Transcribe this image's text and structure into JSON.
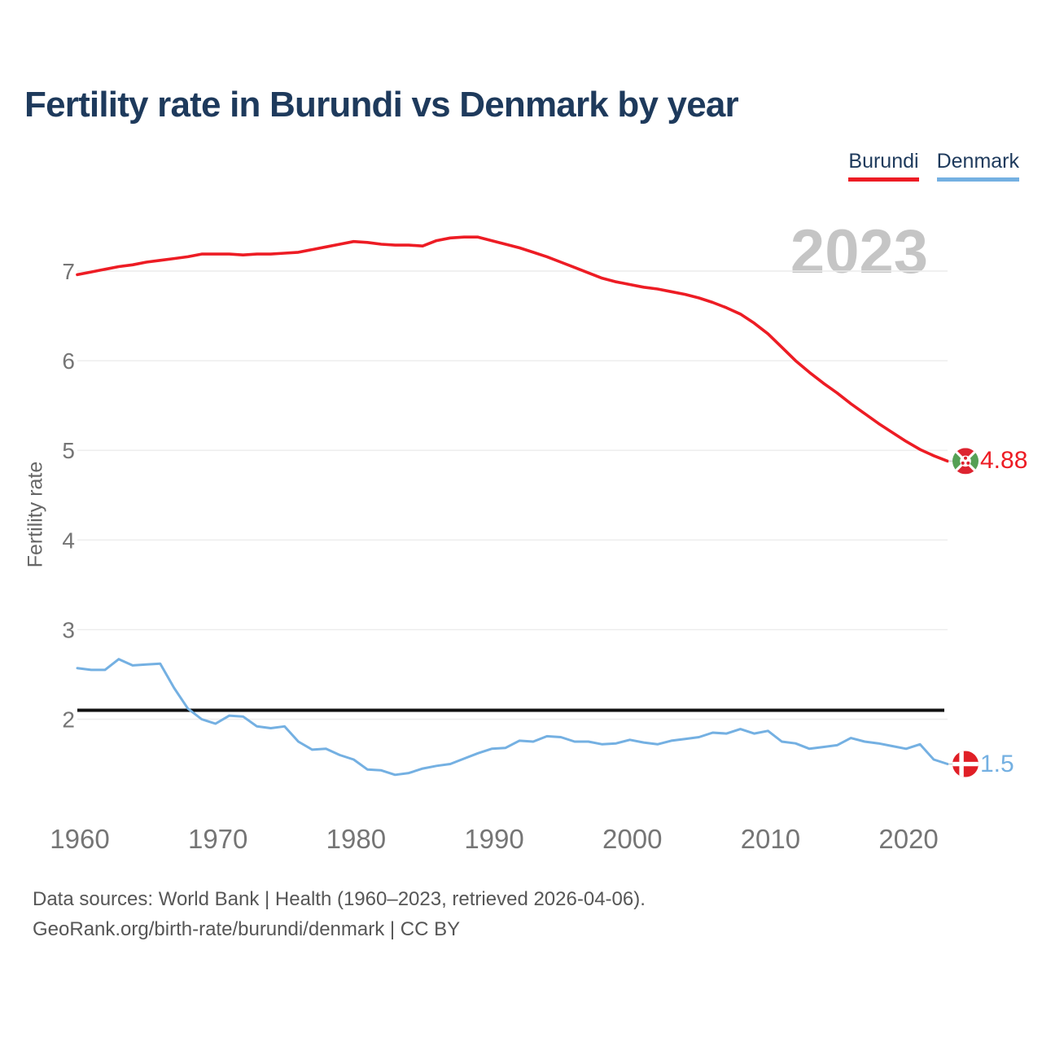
{
  "title": "Fertility rate in Burundi vs Denmark by year",
  "legend": {
    "items": [
      {
        "label": "Burundi",
        "color": "#ed1c24"
      },
      {
        "label": "Denmark",
        "color": "#74b0e2"
      }
    ]
  },
  "watermark": "2023",
  "y_axis": {
    "label": "Fertility rate"
  },
  "end_labels": [
    {
      "series": "Burundi",
      "value": "4.88",
      "flag": "burundi-flag"
    },
    {
      "series": "Denmark",
      "value": "1.5",
      "flag": "denmark-flag"
    }
  ],
  "footer": {
    "line1": "Data sources: World Bank | Health (1960–2023, retrieved 2026-04-06).",
    "line2": "GeoRank.org/birth-rate/burundi/denmark | CC BY"
  },
  "colors": {
    "burundi": "#ed1c24",
    "denmark": "#74b0e2",
    "title": "#1e3a5c",
    "axis_text": "#757575",
    "grid": "#ececec",
    "reference": "#111111",
    "watermark": "#c5c5c5",
    "connector": "#cccccc"
  },
  "chart_data": {
    "type": "line",
    "title": "Fertility rate in Burundi vs Denmark by year",
    "xlabel": "",
    "ylabel": "Fertility rate",
    "xlim": [
      1960,
      2023
    ],
    "ylim": [
      1.3,
      7.6
    ],
    "grid": "horizontal",
    "legend_position": "top-right",
    "yticks": [
      7,
      6,
      5,
      4,
      3,
      2
    ],
    "xticks": [
      1960,
      1970,
      1980,
      1990,
      2000,
      2010,
      2020
    ],
    "reference_line": 2.1,
    "x": [
      1960,
      1961,
      1962,
      1963,
      1964,
      1965,
      1966,
      1967,
      1968,
      1969,
      1970,
      1971,
      1972,
      1973,
      1974,
      1975,
      1976,
      1977,
      1978,
      1979,
      1980,
      1981,
      1982,
      1983,
      1984,
      1985,
      1986,
      1987,
      1988,
      1989,
      1990,
      1991,
      1992,
      1993,
      1994,
      1995,
      1996,
      1997,
      1998,
      1999,
      2000,
      2001,
      2002,
      2003,
      2004,
      2005,
      2006,
      2007,
      2008,
      2009,
      2010,
      2011,
      2012,
      2013,
      2014,
      2015,
      2016,
      2017,
      2018,
      2019,
      2020,
      2021,
      2022,
      2023
    ],
    "series": [
      {
        "name": "Burundi",
        "color": "#ed1c24",
        "end_value": 4.88,
        "values": [
          6.96,
          6.99,
          7.02,
          7.05,
          7.07,
          7.1,
          7.12,
          7.14,
          7.16,
          7.19,
          7.19,
          7.19,
          7.18,
          7.19,
          7.19,
          7.2,
          7.21,
          7.24,
          7.27,
          7.3,
          7.33,
          7.32,
          7.3,
          7.29,
          7.29,
          7.28,
          7.34,
          7.37,
          7.38,
          7.38,
          7.34,
          7.3,
          7.26,
          7.21,
          7.16,
          7.1,
          7.04,
          6.98,
          6.92,
          6.88,
          6.85,
          6.82,
          6.8,
          6.77,
          6.74,
          6.7,
          6.65,
          6.59,
          6.52,
          6.42,
          6.3,
          6.15,
          6.0,
          5.87,
          5.75,
          5.64,
          5.52,
          5.41,
          5.3,
          5.2,
          5.1,
          5.01,
          4.94,
          4.88
        ]
      },
      {
        "name": "Denmark",
        "color": "#74b0e2",
        "end_value": 1.5,
        "values": [
          2.57,
          2.55,
          2.55,
          2.67,
          2.6,
          2.61,
          2.62,
          2.35,
          2.12,
          2.0,
          1.95,
          2.04,
          2.03,
          1.92,
          1.9,
          1.92,
          1.75,
          1.66,
          1.67,
          1.6,
          1.55,
          1.44,
          1.43,
          1.38,
          1.4,
          1.45,
          1.48,
          1.5,
          1.56,
          1.62,
          1.67,
          1.68,
          1.76,
          1.75,
          1.81,
          1.8,
          1.75,
          1.75,
          1.72,
          1.73,
          1.77,
          1.74,
          1.72,
          1.76,
          1.78,
          1.8,
          1.85,
          1.84,
          1.89,
          1.84,
          1.87,
          1.75,
          1.73,
          1.67,
          1.69,
          1.71,
          1.79,
          1.75,
          1.73,
          1.7,
          1.67,
          1.72,
          1.55,
          1.5
        ]
      }
    ]
  }
}
